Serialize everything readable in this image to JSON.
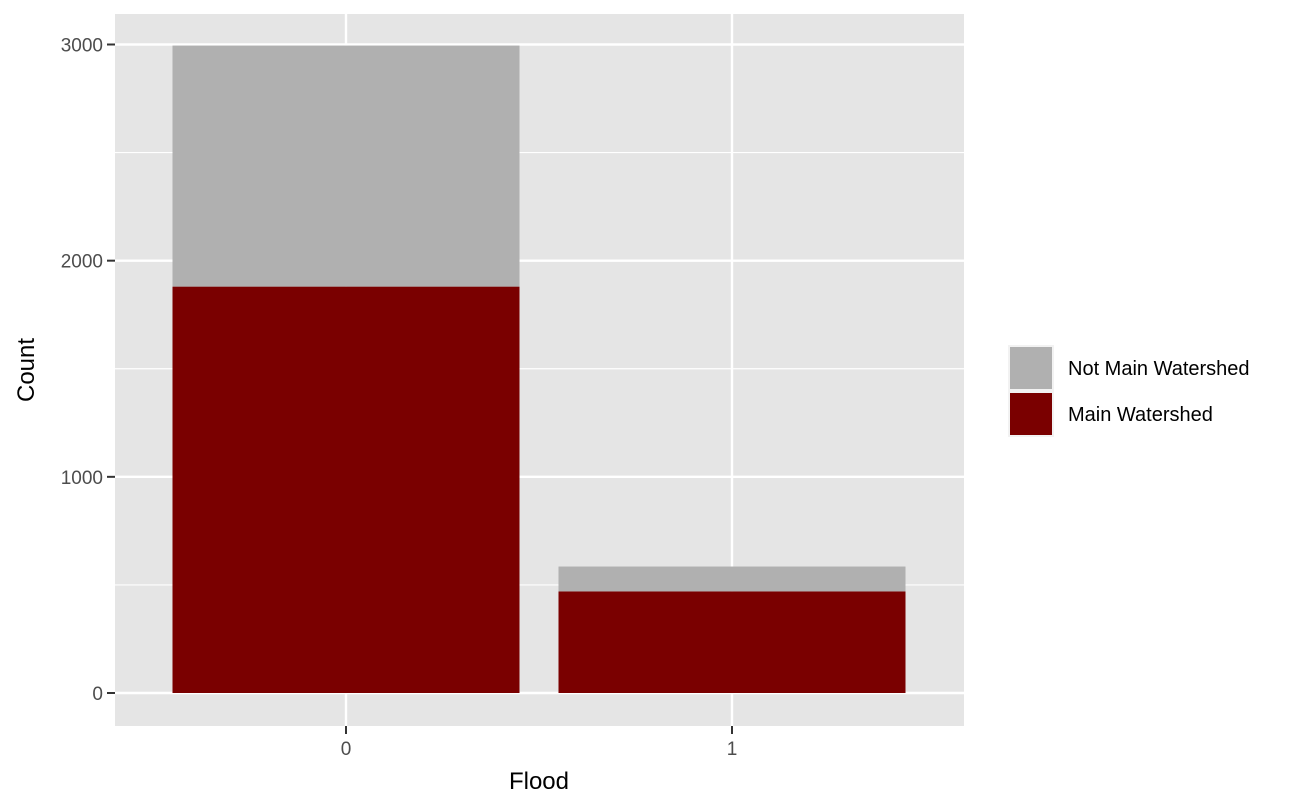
{
  "chart_data": {
    "type": "bar",
    "stacked": true,
    "categories": [
      "0",
      "1"
    ],
    "series": [
      {
        "name": "Main Watershed",
        "values": [
          1880,
          470
        ],
        "color": "#7a0000"
      },
      {
        "name": "Not Main Watershed",
        "values": [
          1115,
          115
        ],
        "color": "#b0b0b0"
      }
    ],
    "xlabel": "Flood",
    "ylabel": "Count",
    "ylim": [
      -150,
      3150
    ],
    "yticks": [
      0,
      1000,
      2000,
      3000
    ],
    "ytick_labels": [
      "0",
      "1000",
      "2000",
      "3000"
    ],
    "grid": true,
    "legend_position": "right",
    "legend_order": [
      "Not Main Watershed",
      "Main Watershed"
    ],
    "panel_background": "#e5e5e5",
    "grid_color": "#ffffff"
  }
}
